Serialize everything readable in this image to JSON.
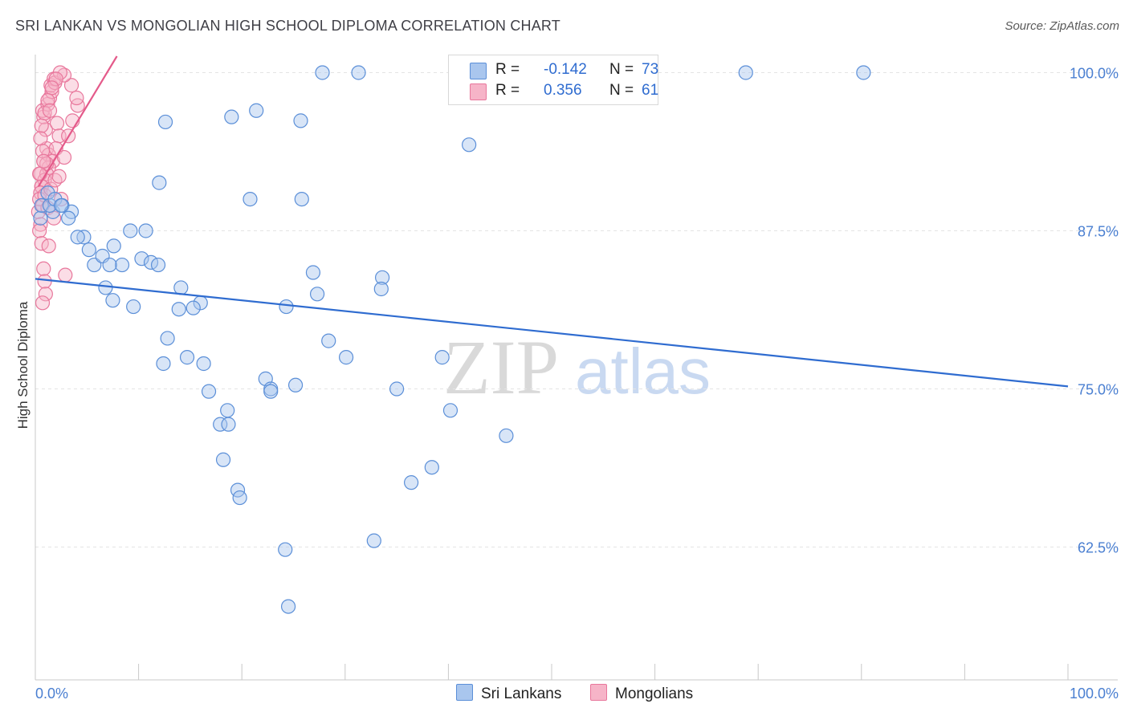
{
  "title": "SRI LANKAN VS MONGOLIAN HIGH SCHOOL DIPLOMA CORRELATION CHART",
  "source": "Source: ZipAtlas.com",
  "colors": {
    "blue_fill": "#a9c6ee",
    "blue_stroke": "#5b8fd8",
    "blue_line": "#2f6cd0",
    "pink_fill": "#f6b4c8",
    "pink_stroke": "#e8779c",
    "pink_line": "#e45a8a",
    "tick_text": "#4a7fd1",
    "grid": "#e4e4e4"
  },
  "legend": {
    "rows": [
      {
        "r_label": "R =",
        "r_value": "-0.142",
        "n_label": "N =",
        "n_value": "73"
      },
      {
        "r_label": "R =",
        "r_value": "0.356",
        "n_label": "N =",
        "n_value": "61"
      }
    ]
  },
  "bottom_legend": [
    "Sri Lankans",
    "Mongolians"
  ],
  "watermark": {
    "zip": "ZIP",
    "atlas": "atlas"
  },
  "chart_data": {
    "type": "scatter",
    "title": "SRI LANKAN VS MONGOLIAN HIGH SCHOOL DIPLOMA CORRELATION CHART",
    "xlabel": "",
    "ylabel": "High School Diploma",
    "xlim": [
      0,
      100
    ],
    "ylim": [
      52,
      101.3
    ],
    "x_tick_labels": [
      "0.0%",
      "100.0%"
    ],
    "y_ticks": [
      100.0,
      87.5,
      75.0,
      62.5
    ],
    "y_tick_labels": [
      "100.0%",
      "87.5%",
      "75.0%",
      "62.5%"
    ],
    "grid": true,
    "legend_position": "top-center",
    "series": [
      {
        "name": "Sri Lankans",
        "x": [
          0.5,
          0.6,
          1.2,
          1.7,
          1.4,
          1.9,
          2.6,
          3.5,
          2.5,
          3.2,
          4.7,
          4.1,
          5.2,
          5.7,
          6.5,
          7.6,
          8.4,
          7.2,
          6.8,
          7.5,
          9.5,
          9.2,
          10.7,
          10.3,
          11.2,
          11.9,
          12.0,
          12.6,
          14.1,
          13.9,
          16.0,
          15.3,
          12.8,
          14.7,
          12.4,
          16.3,
          21.4,
          20.8,
          16.8,
          18.6,
          18.2,
          19.6,
          19.8,
          17.9,
          18.7,
          22.3,
          22.8,
          24.2,
          24.5,
          31.3,
          25.7,
          25.8,
          26.9,
          27.3,
          24.3,
          28.4,
          33.6,
          33.5,
          30.1,
          25.2,
          22.8,
          42.0,
          38.4,
          36.4,
          32.8,
          39.4,
          40.2,
          45.6,
          35.0,
          27.8,
          19.0,
          68.8,
          80.2
        ],
        "y": [
          88.5,
          89.5,
          90.5,
          89.0,
          89.5,
          90.0,
          89.5,
          89.0,
          89.5,
          88.5,
          87.0,
          87.0,
          86.0,
          84.8,
          85.5,
          86.3,
          84.8,
          84.8,
          83.0,
          82.0,
          81.5,
          87.5,
          87.5,
          85.3,
          85.0,
          84.8,
          91.3,
          96.1,
          83.0,
          81.3,
          81.8,
          81.4,
          79.0,
          77.5,
          77.0,
          77.0,
          97.0,
          90.0,
          74.8,
          73.3,
          69.4,
          67.0,
          66.4,
          72.2,
          72.2,
          75.8,
          75.0,
          62.3,
          57.8,
          100.0,
          96.2,
          90.0,
          84.2,
          82.5,
          81.5,
          78.8,
          83.8,
          82.9,
          77.5,
          75.3,
          74.8,
          94.3,
          68.8,
          67.6,
          63.0,
          77.5,
          73.3,
          71.3,
          75.0,
          100.0,
          96.5,
          100.0,
          100.0
        ]
      },
      {
        "name": "Mongolians",
        "x": [
          0.3,
          0.5,
          0.4,
          0.6,
          0.8,
          0.9,
          1.0,
          0.7,
          0.6,
          0.5,
          0.8,
          1.1,
          1.3,
          1.0,
          0.8,
          0.7,
          1.2,
          1.4,
          1.6,
          1.5,
          1.8,
          1.9,
          2.1,
          2.3,
          2.0,
          1.7,
          1.3,
          1.1,
          0.9,
          0.6,
          0.5,
          0.4,
          0.7,
          0.9,
          1.2,
          1.5,
          1.9,
          2.3,
          2.8,
          3.2,
          3.6,
          4.1,
          4.0,
          3.5,
          2.8,
          2.4,
          2.0,
          1.6,
          1.2,
          0.9,
          0.6,
          0.5,
          0.7,
          1.1,
          2.5,
          1.8,
          1.3,
          0.4,
          0.8,
          1.4,
          2.9
        ],
        "y": [
          89.0,
          88.0,
          87.5,
          86.5,
          84.5,
          83.5,
          82.5,
          81.8,
          91.0,
          92.0,
          93.0,
          94.0,
          93.5,
          95.5,
          96.5,
          97.0,
          97.5,
          98.0,
          98.5,
          99.0,
          99.5,
          99.2,
          96.0,
          95.0,
          94.0,
          93.0,
          92.5,
          92.0,
          91.5,
          91.0,
          90.5,
          90.0,
          89.5,
          90.3,
          89.3,
          90.8,
          91.5,
          91.8,
          93.3,
          95.0,
          96.2,
          97.4,
          98.0,
          99.0,
          99.8,
          100.0,
          99.5,
          98.8,
          97.8,
          96.8,
          95.8,
          94.8,
          93.8,
          92.8,
          90.0,
          88.5,
          86.3,
          92.0,
          93.0,
          97.0,
          84.0
        ]
      }
    ],
    "trendlines": [
      {
        "series": "Sri Lankans",
        "x": [
          0,
          100
        ],
        "y": [
          83.7,
          75.2
        ]
      },
      {
        "series": "Mongolians",
        "x": [
          0.3,
          7.9
        ],
        "y": [
          91.0,
          101.3
        ]
      }
    ]
  }
}
